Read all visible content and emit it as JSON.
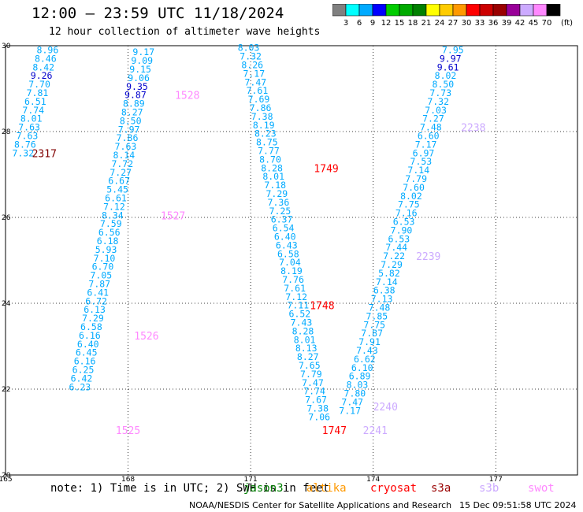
{
  "header": {
    "title": "12:00 – 23:59 UTC 11/18/2024",
    "subtitle": "12 hour collection of altimeter wave heights"
  },
  "colorbar": {
    "unit_label": "(ft)",
    "ticks": [
      "3",
      "6",
      "9",
      "12",
      "15",
      "18",
      "21",
      "24",
      "27",
      "30",
      "33",
      "36",
      "39",
      "42",
      "45",
      "70"
    ],
    "colors": [
      "#808080",
      "#00ffff",
      "#00aaff",
      "#0000ff",
      "#00cc00",
      "#00aa00",
      "#008000",
      "#ffff00",
      "#ffcc00",
      "#ff9900",
      "#ff0000",
      "#cc0000",
      "#990000",
      "#990099",
      "#ccaaff",
      "#ff88ff",
      "#000000"
    ]
  },
  "chart_data": {
    "type": "scatter",
    "title": "12:00 – 23:59 UTC 11/18/2024",
    "subtitle": "12 hour collection of altimeter wave heights",
    "xlabel": "",
    "ylabel": "",
    "xlim": [
      165,
      179
    ],
    "ylim": [
      20,
      30
    ],
    "x_ticks": [
      "165",
      "168",
      "171",
      "174",
      "177"
    ],
    "y_ticks": [
      "30",
      "28",
      "26",
      "24",
      "22",
      "20"
    ],
    "grid": true,
    "units": "ft",
    "tracks": [
      {
        "color": "#00aaff",
        "points": [
          [
            166.03,
            29.9,
            "8.96"
          ],
          [
            165.98,
            29.7,
            "8.46"
          ],
          [
            165.93,
            29.5,
            "8.42"
          ],
          [
            165.88,
            29.3,
            "9.26"
          ],
          [
            165.83,
            29.1,
            "7.70"
          ],
          [
            165.78,
            28.9,
            "7.81"
          ],
          [
            165.73,
            28.7,
            "6.51"
          ],
          [
            165.68,
            28.5,
            "7.74"
          ],
          [
            165.63,
            28.3,
            "8.01"
          ],
          [
            165.58,
            28.1,
            "7.63"
          ],
          [
            165.53,
            27.9,
            "7.63"
          ],
          [
            165.48,
            27.7,
            "8.76"
          ],
          [
            165.43,
            27.5,
            "7.32"
          ]
        ]
      },
      {
        "color": "#00aaff",
        "points": [
          [
            168.38,
            29.85,
            "9.17"
          ],
          [
            168.34,
            29.65,
            "9.09"
          ],
          [
            168.3,
            29.45,
            "9.15"
          ],
          [
            168.26,
            29.25,
            "9.06"
          ],
          [
            168.22,
            29.05,
            "9.35"
          ],
          [
            168.18,
            28.85,
            "9.87"
          ],
          [
            168.14,
            28.65,
            "8.89"
          ],
          [
            168.1,
            28.45,
            "8.27"
          ],
          [
            168.06,
            28.25,
            "8.50"
          ],
          [
            168.02,
            28.05,
            "7.97"
          ],
          [
            167.98,
            27.85,
            "7.86"
          ],
          [
            167.94,
            27.65,
            "7.63"
          ],
          [
            167.9,
            27.45,
            "8.14"
          ],
          [
            167.86,
            27.25,
            "7.72"
          ],
          [
            167.82,
            27.05,
            "7.27"
          ],
          [
            167.78,
            26.85,
            "6.67"
          ],
          [
            167.74,
            26.65,
            "5.45"
          ],
          [
            167.7,
            26.45,
            "6.61"
          ],
          [
            167.66,
            26.25,
            "7.12"
          ],
          [
            167.62,
            26.05,
            "8.34"
          ],
          [
            167.58,
            25.85,
            "7.59"
          ],
          [
            167.54,
            25.65,
            "6.56"
          ],
          [
            167.5,
            25.45,
            "6.18"
          ],
          [
            167.46,
            25.25,
            "5.93"
          ],
          [
            167.42,
            25.05,
            "7.10"
          ],
          [
            167.38,
            24.85,
            "6.70"
          ],
          [
            167.34,
            24.65,
            "7.05"
          ],
          [
            167.3,
            24.45,
            "7.87"
          ],
          [
            167.26,
            24.25,
            "6.41"
          ],
          [
            167.22,
            24.05,
            "6.72"
          ],
          [
            167.18,
            23.85,
            "6.13"
          ],
          [
            167.14,
            23.65,
            "7.29"
          ],
          [
            167.1,
            23.45,
            "6.58"
          ],
          [
            167.06,
            23.25,
            "6.16"
          ],
          [
            167.02,
            23.05,
            "6.40"
          ],
          [
            166.98,
            22.85,
            "6.45"
          ],
          [
            166.94,
            22.65,
            "6.16"
          ],
          [
            166.9,
            22.45,
            "6.25"
          ],
          [
            166.86,
            22.25,
            "6.42"
          ],
          [
            166.82,
            22.05,
            "6.23"
          ]
        ]
      },
      {
        "color": "#00aaff",
        "points": [
          [
            170.95,
            29.95,
            "8.03"
          ],
          [
            171.0,
            29.75,
            "7.32"
          ],
          [
            171.04,
            29.55,
            "8.26"
          ],
          [
            171.08,
            29.35,
            "7.17"
          ],
          [
            171.12,
            29.15,
            "7.47"
          ],
          [
            171.16,
            28.95,
            "7.61"
          ],
          [
            171.2,
            28.75,
            "7.69"
          ],
          [
            171.24,
            28.55,
            "7.86"
          ],
          [
            171.28,
            28.35,
            "7.38"
          ],
          [
            171.32,
            28.15,
            "8.19"
          ],
          [
            171.36,
            27.95,
            "8.23"
          ],
          [
            171.4,
            27.75,
            "8.75"
          ],
          [
            171.44,
            27.55,
            "7.77"
          ],
          [
            171.48,
            27.35,
            "8.70"
          ],
          [
            171.52,
            27.15,
            "8.28"
          ],
          [
            171.56,
            26.95,
            "8.01"
          ],
          [
            171.6,
            26.75,
            "7.18"
          ],
          [
            171.64,
            26.55,
            "7.29"
          ],
          [
            171.68,
            26.35,
            "7.36"
          ],
          [
            171.72,
            26.15,
            "7.25"
          ],
          [
            171.76,
            25.95,
            "6.37"
          ],
          [
            171.8,
            25.75,
            "6.54"
          ],
          [
            171.84,
            25.55,
            "6.40"
          ],
          [
            171.88,
            25.35,
            "6.43"
          ],
          [
            171.92,
            25.15,
            "6.58"
          ],
          [
            171.96,
            24.95,
            "7.04"
          ],
          [
            172.0,
            24.75,
            "8.19"
          ],
          [
            172.04,
            24.55,
            "7.76"
          ],
          [
            172.08,
            24.35,
            "7.61"
          ],
          [
            172.12,
            24.15,
            "7.12"
          ],
          [
            172.16,
            23.95,
            "7.11"
          ],
          [
            172.2,
            23.75,
            "6.52"
          ],
          [
            172.24,
            23.55,
            "7.43"
          ],
          [
            172.28,
            23.35,
            "8.28"
          ],
          [
            172.32,
            23.15,
            "8.01"
          ],
          [
            172.36,
            22.95,
            "8.13"
          ],
          [
            172.4,
            22.75,
            "8.27"
          ],
          [
            172.44,
            22.55,
            "7.65"
          ],
          [
            172.48,
            22.35,
            "7.79"
          ],
          [
            172.52,
            22.15,
            "7.47"
          ],
          [
            172.56,
            21.95,
            "7.74"
          ],
          [
            172.6,
            21.75,
            "7.67"
          ],
          [
            172.64,
            21.55,
            "7.38"
          ],
          [
            172.68,
            21.35,
            "7.06"
          ]
        ]
      },
      {
        "color": "#00aaff",
        "points": [
          [
            175.95,
            29.9,
            "7.95"
          ],
          [
            175.89,
            29.7,
            "9.97"
          ],
          [
            175.83,
            29.5,
            "9.61"
          ],
          [
            175.77,
            29.3,
            "8.02"
          ],
          [
            175.71,
            29.1,
            "8.50"
          ],
          [
            175.65,
            28.9,
            "7.73"
          ],
          [
            175.59,
            28.7,
            "7.32"
          ],
          [
            175.53,
            28.5,
            "7.03"
          ],
          [
            175.47,
            28.3,
            "7.27"
          ],
          [
            175.41,
            28.1,
            "7.48"
          ],
          [
            175.35,
            27.9,
            "6.60"
          ],
          [
            175.29,
            27.7,
            "7.17"
          ],
          [
            175.23,
            27.5,
            "6.97"
          ],
          [
            175.17,
            27.3,
            "7.53"
          ],
          [
            175.11,
            27.1,
            "7.14"
          ],
          [
            175.05,
            26.9,
            "7.79"
          ],
          [
            174.99,
            26.7,
            "7.60"
          ],
          [
            174.93,
            26.5,
            "8.02"
          ],
          [
            174.87,
            26.3,
            "7.75"
          ],
          [
            174.81,
            26.1,
            "7.16"
          ],
          [
            174.75,
            25.9,
            "6.53"
          ],
          [
            174.69,
            25.7,
            "7.90"
          ],
          [
            174.63,
            25.5,
            "6.53"
          ],
          [
            174.57,
            25.3,
            "7.44"
          ],
          [
            174.51,
            25.1,
            "7.22"
          ],
          [
            174.45,
            24.9,
            "7.29"
          ],
          [
            174.39,
            24.7,
            "5.82"
          ],
          [
            174.33,
            24.5,
            "7.14"
          ],
          [
            174.27,
            24.3,
            "6.38"
          ],
          [
            174.21,
            24.1,
            "7.13"
          ],
          [
            174.15,
            23.9,
            "7.48"
          ],
          [
            174.09,
            23.7,
            "7.85"
          ],
          [
            174.03,
            23.5,
            "7.75"
          ],
          [
            173.97,
            23.3,
            "7.87"
          ],
          [
            173.91,
            23.1,
            "7.91"
          ],
          [
            173.85,
            22.9,
            "7.43"
          ],
          [
            173.79,
            22.7,
            "6.62"
          ],
          [
            173.73,
            22.5,
            "6.10"
          ],
          [
            173.67,
            22.3,
            "6.89"
          ],
          [
            173.61,
            22.1,
            "8.03"
          ],
          [
            173.55,
            21.9,
            "7.80"
          ],
          [
            173.49,
            21.7,
            "7.47"
          ],
          [
            173.43,
            21.5,
            "7.17"
          ]
        ]
      }
    ],
    "time_labels": [
      {
        "x": 165.95,
        "y": 27.5,
        "text": "2317",
        "color": "#800000"
      },
      {
        "x": 169.45,
        "y": 28.85,
        "text": "1528",
        "color": "#ff88ff"
      },
      {
        "x": 169.1,
        "y": 26.05,
        "text": "1527",
        "color": "#ff88ff"
      },
      {
        "x": 168.45,
        "y": 23.25,
        "text": "1526",
        "color": "#ff88ff"
      },
      {
        "x": 168.0,
        "y": 21.05,
        "text": "1525",
        "color": "#ff88ff"
      },
      {
        "x": 172.85,
        "y": 27.15,
        "text": "1749",
        "color": "#ff0000"
      },
      {
        "x": 172.75,
        "y": 23.95,
        "text": "1748",
        "color": "#ff0000"
      },
      {
        "x": 173.05,
        "y": 21.05,
        "text": "1747",
        "color": "#ff0000"
      },
      {
        "x": 176.45,
        "y": 28.1,
        "text": "2238",
        "color": "#ccaaff"
      },
      {
        "x": 175.35,
        "y": 25.1,
        "text": "2239",
        "color": "#ccaaff"
      },
      {
        "x": 174.3,
        "y": 21.6,
        "text": "2240",
        "color": "#ccaaff"
      },
      {
        "x": 174.05,
        "y": 21.05,
        "text": "2241",
        "color": "#ccaaff"
      }
    ]
  },
  "footer": {
    "note": "note: 1) Time is in UTC; 2) SWH is in feet",
    "missions": [
      {
        "name": "jason3",
        "color": "#008000"
      },
      {
        "name": "altika",
        "color": "#ff9900"
      },
      {
        "name": "cryosat",
        "color": "#ff0000"
      },
      {
        "name": "s3a",
        "color": "#990000"
      },
      {
        "name": "s3b",
        "color": "#ccaaff"
      },
      {
        "name": "swot",
        "color": "#ff88ff"
      }
    ],
    "credit": "NOAA/NESDIS Center for Satellite Applications and Research",
    "timestamp": "15 Dec 09:51:58 UTC 2024"
  }
}
